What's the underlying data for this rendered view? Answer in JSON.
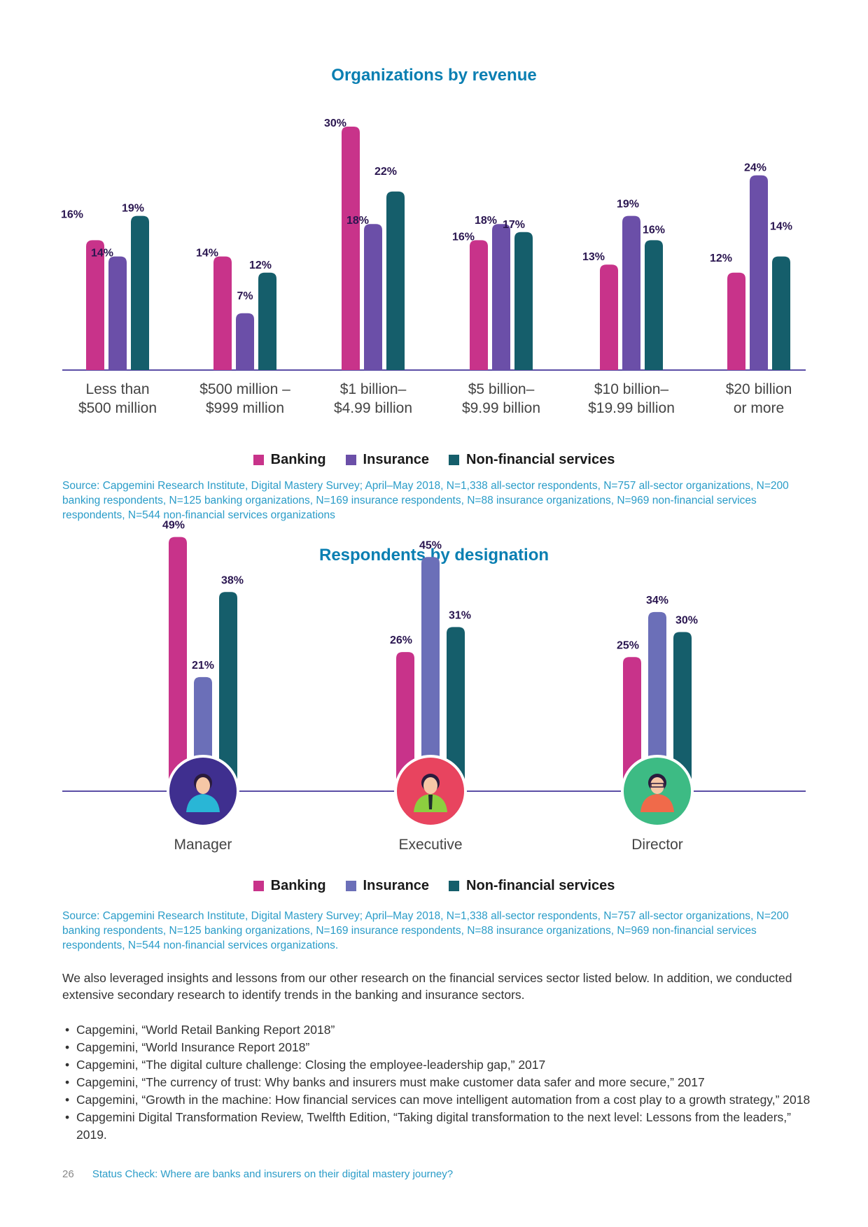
{
  "chart_data": [
    {
      "type": "bar",
      "title": "Organizations by revenue",
      "categories": [
        "Less than $500 million",
        "$500 million – $999 million",
        "$1 billion– $4.99 billion",
        "$5 billion– $9.99 billion",
        "$10 billion– $19.99 billion",
        "$20 billion or more"
      ],
      "category_lines": [
        [
          "Less than",
          "$500 million"
        ],
        [
          "$500 million –",
          "$999 million"
        ],
        [
          "$1 billion–",
          "$4.99 billion"
        ],
        [
          "$5 billion–",
          "$9.99 billion"
        ],
        [
          "$10 billion–",
          "$19.99 billion"
        ],
        [
          "$20 billion",
          "or more"
        ]
      ],
      "series": [
        {
          "name": "Banking",
          "color": "#c8338a",
          "values": [
            16,
            14,
            30,
            16,
            13,
            12
          ]
        },
        {
          "name": "Insurance",
          "color": "#6b4fa8",
          "values": [
            14,
            7,
            18,
            18,
            19,
            24
          ]
        },
        {
          "name": "Non-financial services",
          "color": "#155e6b",
          "values": [
            19,
            12,
            22,
            17,
            16,
            14
          ]
        }
      ],
      "unit": "%",
      "ylim": [
        0,
        30
      ],
      "grid": false,
      "legend": "bottom"
    },
    {
      "type": "bar",
      "title": "Respondents by designation",
      "categories": [
        "Manager",
        "Executive",
        "Director"
      ],
      "series": [
        {
          "name": "Banking",
          "color": "#c8338a",
          "values": [
            49,
            26,
            25
          ]
        },
        {
          "name": "Insurance",
          "color": "#6b6fb8",
          "values": [
            21,
            45,
            34
          ]
        },
        {
          "name": "Non-financial services",
          "color": "#155e6b",
          "values": [
            38,
            31,
            30
          ]
        }
      ],
      "unit": "%",
      "ylim": [
        0,
        49
      ],
      "grid": false,
      "legend": "bottom",
      "icon_names": [
        "manager-avatar-icon",
        "executive-avatar-icon",
        "director-avatar-icon"
      ],
      "icon_colors": [
        "#3f2f8f",
        "#e8445f",
        "#3dbb84"
      ]
    }
  ],
  "legend": {
    "banking": "Banking",
    "insurance": "Insurance",
    "nonfin": "Non-financial services"
  },
  "source1": "Source: Capgemini Research Institute, Digital Mastery Survey; April–May 2018, N=1,338 all-sector respondents, N=757 all-sector organizations, N=200 banking respondents, N=125 banking organizations, N=169 insurance respondents, N=88 insurance organizations, N=969 non-financial services respondents, N=544 non-financial services organizations",
  "source2": "Source: Capgemini Research Institute, Digital Mastery Survey; April–May 2018, N=1,338 all-sector respondents, N=757 all-sector organizations, N=200 banking respondents, N=125 banking organizations, N=169 insurance respondents, N=88 insurance organizations, N=969 non-financial services respondents, N=544 non-financial services organizations.",
  "intro": "We also leveraged insights and lessons from our other research on the financial services sector listed below. In addition, we conducted extensive secondary research to identify trends in the banking and insurance sectors.",
  "references": [
    "Capgemini, “World Retail Banking Report 2018”",
    "Capgemini, “World Insurance Report 2018”",
    "Capgemini, “The digital culture challenge: Closing the employee-leadership gap,” 2017",
    "Capgemini, “The currency of trust: Why banks and insurers must make customer data safer and more secure,” 2017",
    "Capgemini, “Growth in the machine: How financial services can move intelligent automation from a cost play to a growth strategy,” 2018",
    "Capgemini Digital Transformation Review, Twelfth Edition, “Taking digital transformation to the next level: Lessons from the leaders,” 2019."
  ],
  "footer": {
    "page": "26",
    "title": "Status Check: Where are banks and insurers on their digital mastery journey?"
  },
  "colors": {
    "title": "#0a7fb2",
    "source": "#2a9cc8",
    "baseline": "#5b4ea6"
  }
}
